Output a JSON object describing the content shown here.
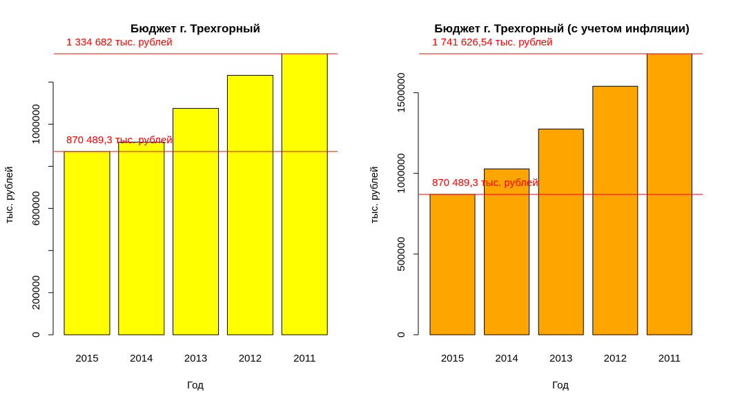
{
  "chart_data": [
    {
      "type": "bar",
      "title": "Бюджет г. Трехгорный",
      "xlabel": "Год",
      "ylabel": "тыс. рублей",
      "categories": [
        "2015",
        "2014",
        "2013",
        "2012",
        "2011"
      ],
      "values": [
        870489.3,
        915000,
        1075000,
        1232000,
        1334682
      ],
      "ylim": [
        0,
        1334682
      ],
      "y_ticks": [
        0,
        200000,
        400000,
        600000,
        800000,
        1000000,
        1200000
      ],
      "y_tick_labels": [
        "0",
        "200000",
        "",
        "600000",
        "",
        "1000000",
        ""
      ],
      "bar_color": "#ffff00",
      "hlines": [
        {
          "value": 1334682,
          "label": "1 334 682 тыс. рублей",
          "color": "#ff0000"
        },
        {
          "value": 870489.3,
          "label": "870 489,3 тыс. рублей",
          "color": "#ff0000"
        }
      ],
      "grid": false
    },
    {
      "type": "bar",
      "title": "Бюджет г. Трехгорный (с учетом инфляции)",
      "xlabel": "Год",
      "ylabel": "тыс. рублей",
      "categories": [
        "2015",
        "2014",
        "2013",
        "2012",
        "2011"
      ],
      "values": [
        870489.3,
        1028000,
        1275000,
        1540000,
        1741626.54
      ],
      "ylim": [
        0,
        1741626.54
      ],
      "y_ticks": [
        0,
        500000,
        1000000,
        1500000
      ],
      "y_tick_labels": [
        "0",
        "500000",
        "1000000",
        "1500000"
      ],
      "bar_color": "#ffa500",
      "hlines": [
        {
          "value": 1741626.54,
          "label": "1 741 626,54 тыс. рублей",
          "color": "#ff0000"
        },
        {
          "value": 870489.3,
          "label": "870 489,3 тыс. рублей",
          "color": "#ff0000"
        }
      ],
      "grid": false
    }
  ]
}
